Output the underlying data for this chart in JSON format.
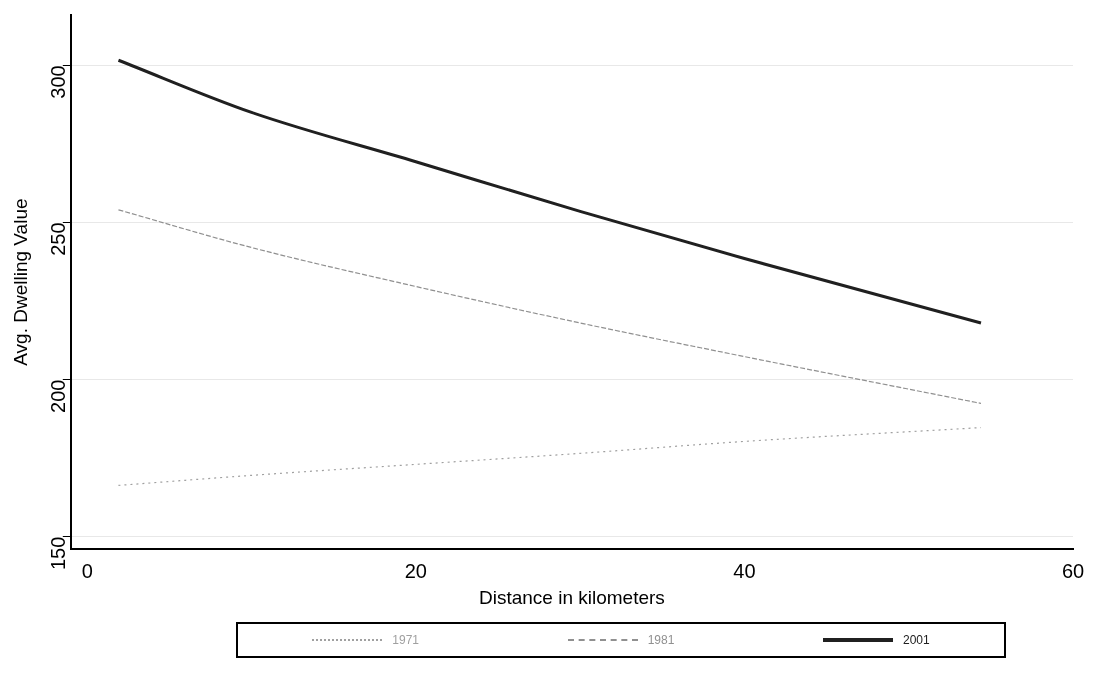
{
  "chart_data": {
    "type": "line",
    "xlabel": "Distance in kilometers",
    "ylabel": "Avg. Dwelling Value",
    "xlim": [
      -1,
      60
    ],
    "xticks": [
      0,
      20,
      40,
      60
    ],
    "ylim": [
      146,
      316
    ],
    "yticks": [
      150,
      200,
      250,
      300
    ],
    "grid": "y",
    "legend": "bottom",
    "marker": "none",
    "series": [
      {
        "name": "1971",
        "color": "#a0a0a0",
        "line_style": "dotted",
        "x": [
          1.9,
          10,
          20,
          30,
          40,
          54.4
        ],
        "values": [
          166.3,
          169.5,
          173,
          176.5,
          180.3,
          184.7
        ]
      },
      {
        "name": "1981",
        "color": "#909090",
        "line_style": "dashed",
        "x": [
          1.9,
          10,
          20,
          30,
          40,
          54.4
        ],
        "values": [
          254,
          242,
          229.6,
          218,
          207.3,
          192.4
        ]
      },
      {
        "name": "2001",
        "color": "#202020",
        "line_style": "solid",
        "x": [
          1.9,
          10,
          20,
          30,
          40,
          54.4
        ],
        "values": [
          301.6,
          285,
          269.3,
          253.5,
          238.5,
          218
        ]
      }
    ]
  }
}
